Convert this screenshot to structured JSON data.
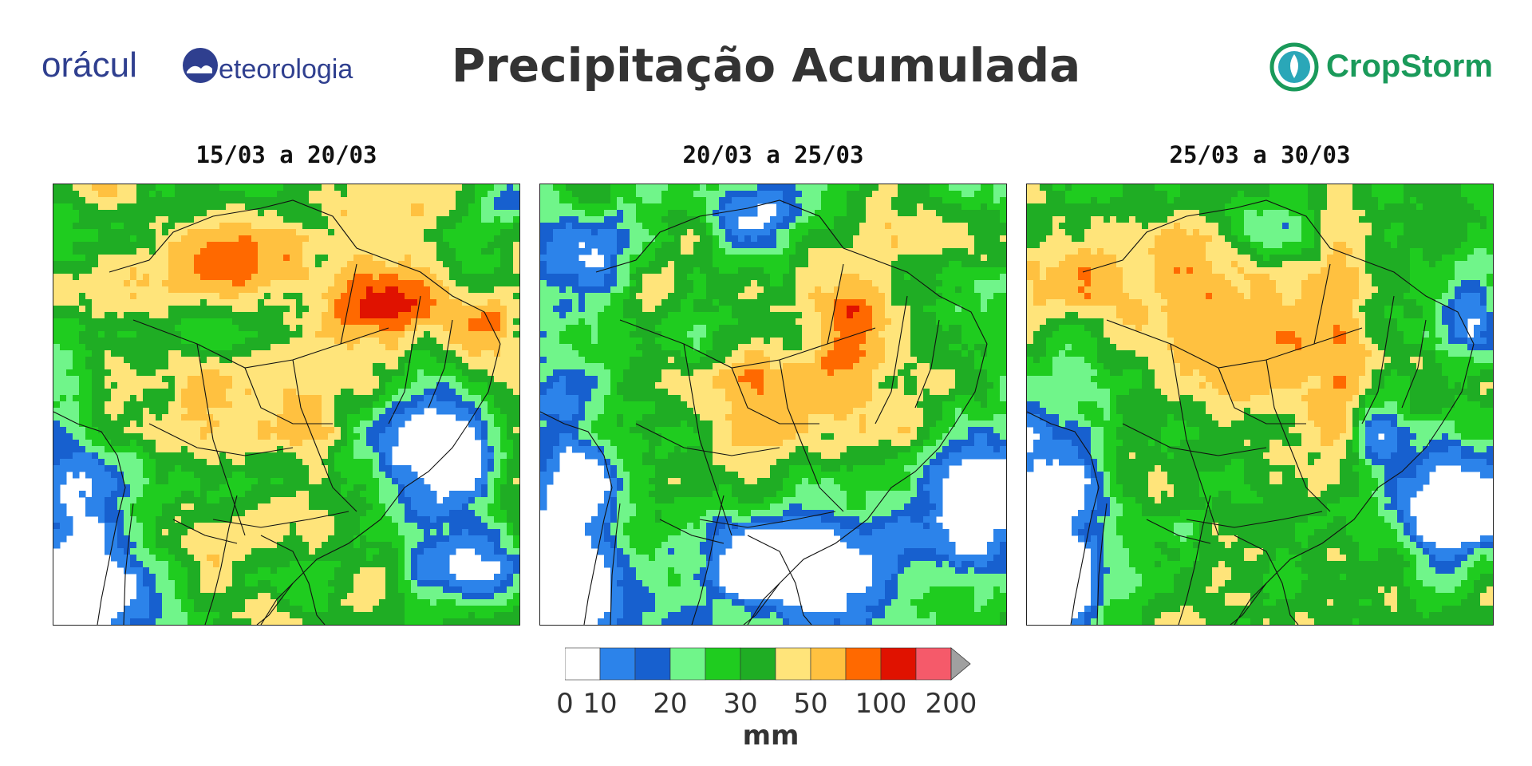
{
  "header": {
    "title": "Precipitação Acumulada",
    "logo_left_text": "orácul  eteorologia",
    "logo_right_text": "CropStorm"
  },
  "panels": [
    {
      "title": "15/03 a 20/03",
      "intensity": "high-north-southeast"
    },
    {
      "title": "20/03 a 25/03",
      "intensity": "high-central"
    },
    {
      "title": "25/03 a 30/03",
      "intensity": "high-west-central"
    }
  ],
  "colorbar": {
    "unit": "mm",
    "tick_labels": [
      "0",
      "10",
      "20",
      "30",
      "50",
      "100",
      "200"
    ],
    "colors": [
      "#ffffff",
      "#2c83ea",
      "#1760cf",
      "#70f58a",
      "#1fcc1f",
      "#1fad24",
      "#ffe47a",
      "#ffc140",
      "#ff6900",
      "#e01200",
      "#f55a6a"
    ],
    "extend_color": "#a0a0a0"
  },
  "map_colors": {
    "white": "#ffffff",
    "blue": "#2c83ea",
    "dark_blue": "#1760cf",
    "light_green": "#70f58a",
    "green": "#1fcc1f",
    "dark_green": "#1fad24",
    "yellow": "#ffe47a",
    "orange": "#ffc140",
    "dark_orange": "#ff6900",
    "red": "#e01200",
    "pink": "#f55a6a"
  }
}
